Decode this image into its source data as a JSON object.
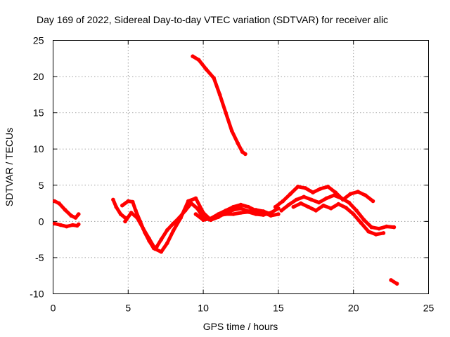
{
  "chart_data": {
    "type": "scatter",
    "title": "Day 169 of 2022, Sidereal Day-to-day VTEC variation (SDTVAR) for receiver alic",
    "xlabel": "GPS time / hours",
    "ylabel": "SDTVAR / TECUs",
    "xlim": [
      0,
      25
    ],
    "ylim": [
      -10,
      25
    ],
    "xticks": [
      0,
      5,
      10,
      15,
      20,
      25
    ],
    "yticks": [
      -10,
      -5,
      0,
      5,
      10,
      15,
      20,
      25
    ],
    "grid": true,
    "color": "#ff0000",
    "series": [
      {
        "name": "arc-1",
        "x": [
          0.1,
          0.4,
          0.8,
          1.2,
          1.5,
          1.7
        ],
        "y": [
          2.8,
          2.5,
          1.6,
          0.8,
          0.5,
          1.0
        ]
      },
      {
        "name": "arc-2",
        "x": [
          0.1,
          0.5,
          0.9,
          1.3,
          1.6,
          1.7
        ],
        "y": [
          -0.3,
          -0.5,
          -0.7,
          -0.5,
          -0.6,
          -0.4
        ]
      },
      {
        "name": "arc-3",
        "x": [
          4.0,
          4.2,
          4.5,
          4.8
        ],
        "y": [
          3.0,
          2.0,
          1.0,
          0.5
        ]
      },
      {
        "name": "arc-4",
        "x": [
          4.6,
          5.0,
          5.3,
          5.5,
          5.8,
          6.1,
          6.4,
          6.7,
          6.9,
          7.2,
          7.6,
          8.0,
          8.4,
          8.8,
          9.2,
          9.6,
          10.0,
          10.5,
          11.0,
          11.5,
          12.0,
          12.5,
          13.0,
          13.5,
          14.0,
          14.5,
          15.0
        ],
        "y": [
          2.2,
          2.8,
          2.7,
          1.5,
          0.0,
          -1.5,
          -2.7,
          -3.7,
          -3.5,
          -2.5,
          -1.2,
          -0.3,
          0.5,
          1.5,
          2.5,
          1.8,
          0.5,
          0.2,
          0.8,
          1.0,
          1.0,
          1.2,
          1.3,
          1.0,
          0.9,
          1.2,
          1.8
        ]
      },
      {
        "name": "arc-5",
        "x": [
          4.8,
          5.2,
          5.6,
          6.0,
          6.4,
          6.8,
          7.2,
          7.6,
          8.0,
          8.5,
          9.0,
          9.5,
          10.0,
          10.5,
          11.0,
          11.5,
          12.0,
          12.5,
          13.0,
          13.5,
          14.0,
          14.5
        ],
        "y": [
          0.0,
          1.2,
          0.5,
          -1.0,
          -2.4,
          -3.8,
          -4.2,
          -3.0,
          -1.3,
          0.5,
          2.8,
          3.2,
          1.2,
          0.2,
          0.6,
          1.2,
          1.6,
          1.8,
          1.4,
          1.6,
          1.4,
          1.0
        ]
      },
      {
        "name": "arc-6",
        "x": [
          9.5,
          10.0,
          10.5,
          11.0,
          11.5,
          12.0,
          12.5,
          13.0,
          13.5,
          14.0,
          14.5,
          15.0
        ],
        "y": [
          1.0,
          0.2,
          0.4,
          1.0,
          1.5,
          2.0,
          2.3,
          2.0,
          1.5,
          1.2,
          0.8,
          1.0
        ]
      },
      {
        "name": "arc-7",
        "x": [
          9.3,
          9.7,
          10.2,
          10.7,
          11.1,
          11.5,
          11.9,
          12.3,
          12.6,
          12.8
        ],
        "y": [
          22.8,
          22.3,
          21.0,
          19.8,
          17.5,
          15.0,
          12.5,
          10.8,
          9.6,
          9.3
        ]
      },
      {
        "name": "arc-8",
        "x": [
          14.8,
          15.3,
          15.8,
          16.3,
          16.8,
          17.3,
          17.8,
          18.3,
          18.8,
          19.3,
          19.8,
          20.3,
          20.8,
          21.3
        ],
        "y": [
          2.0,
          2.8,
          3.8,
          4.8,
          4.6,
          4.0,
          4.5,
          4.8,
          4.0,
          3.0,
          3.8,
          4.1,
          3.6,
          2.8
        ]
      },
      {
        "name": "arc-9",
        "x": [
          15.2,
          15.7,
          16.2,
          16.7,
          17.2,
          17.7,
          18.2,
          18.7,
          19.2,
          19.7,
          20.2,
          20.7,
          21.2,
          21.7,
          22.2,
          22.7
        ],
        "y": [
          1.5,
          2.3,
          3.0,
          3.4,
          3.0,
          2.6,
          3.2,
          3.6,
          3.2,
          2.6,
          1.5,
          0.2,
          -0.8,
          -1.0,
          -0.7,
          -0.8
        ]
      },
      {
        "name": "arc-10",
        "x": [
          16.0,
          16.5,
          17.0,
          17.5,
          18.0,
          18.5,
          19.0,
          19.5,
          20.0,
          20.5,
          21.0,
          21.5,
          22.0
        ],
        "y": [
          2.0,
          2.5,
          2.0,
          1.5,
          2.2,
          1.8,
          2.4,
          1.9,
          1.0,
          -0.2,
          -1.4,
          -1.8,
          -1.6
        ]
      },
      {
        "name": "arc-11",
        "x": [
          22.5,
          22.9
        ],
        "y": [
          -8.1,
          -8.6
        ]
      }
    ]
  }
}
